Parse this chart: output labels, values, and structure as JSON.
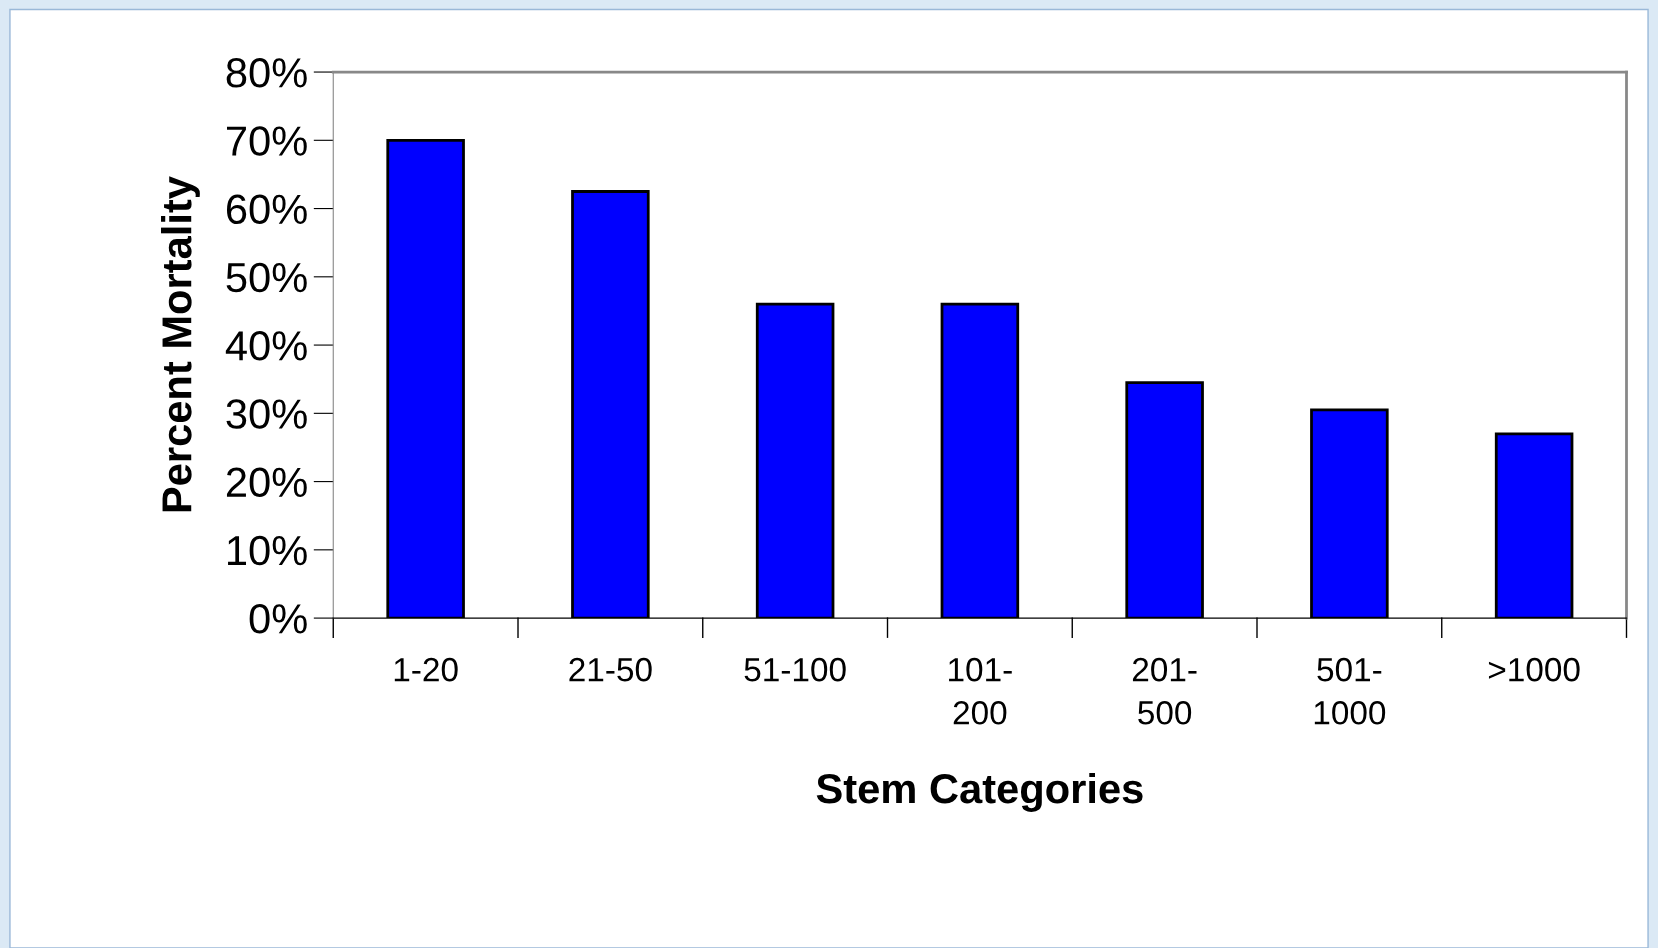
{
  "chart_data": {
    "type": "bar",
    "xlabel": "Stem Categories",
    "ylabel": "Percent Mortality",
    "categories": [
      "1-20",
      "21-50",
      "51-100",
      "101-\n200",
      "201-\n500",
      "501-\n1000",
      ">1000"
    ],
    "values": [
      70,
      62.5,
      46,
      46,
      34.5,
      30.5,
      27
    ],
    "color": "#0000ff",
    "ylim": [
      0,
      80
    ],
    "yticks": [
      {
        "value": 0,
        "label": "0%"
      },
      {
        "value": 10,
        "label": "10%"
      },
      {
        "value": 20,
        "label": "20%"
      },
      {
        "value": 30,
        "label": "30%"
      },
      {
        "value": 40,
        "label": "40%"
      },
      {
        "value": 50,
        "label": "50%"
      },
      {
        "value": 60,
        "label": "60%"
      },
      {
        "value": 70,
        "label": "70%"
      },
      {
        "value": 80,
        "label": "80%"
      }
    ],
    "grid": false,
    "legend": false
  }
}
